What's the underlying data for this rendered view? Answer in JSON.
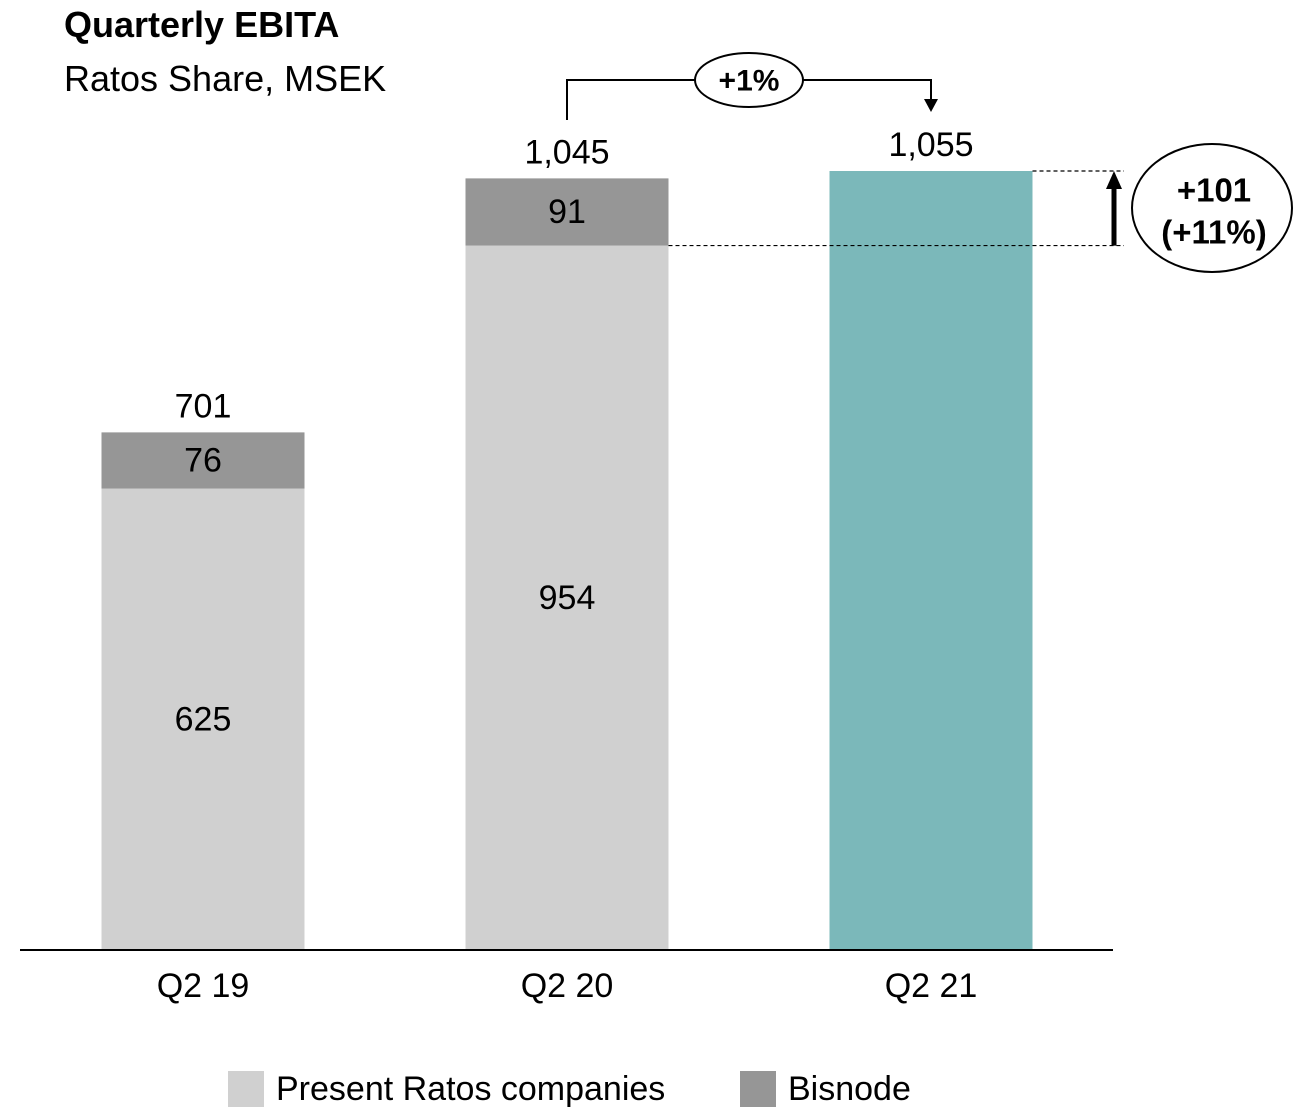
{
  "chart_data": {
    "type": "bar",
    "stacked": true,
    "title": "Quarterly EBITA",
    "subtitle": "Ratos Share, MSEK",
    "categories": [
      "Q2 19",
      "Q2 20",
      "Q2 21"
    ],
    "series": [
      {
        "name": "Present Ratos companies",
        "values": [
          625,
          954,
          1055
        ],
        "color": "#d0d0d0"
      },
      {
        "name": "Bisnode",
        "values": [
          76,
          91,
          0
        ],
        "color": "#969696"
      }
    ],
    "segment_labels": [
      [
        "625",
        "76"
      ],
      [
        "954",
        "91"
      ],
      [
        "",
        ""
      ]
    ],
    "totals": [
      "701",
      "1,045",
      "1,055"
    ],
    "highlight_color": "#7bb8ba",
    "highlight_index": 2,
    "ylim": [
      0,
      1055
    ],
    "annotations": {
      "yoy_change": "+1%",
      "delta_line1": "+101",
      "delta_line2": "(+11%)"
    }
  }
}
